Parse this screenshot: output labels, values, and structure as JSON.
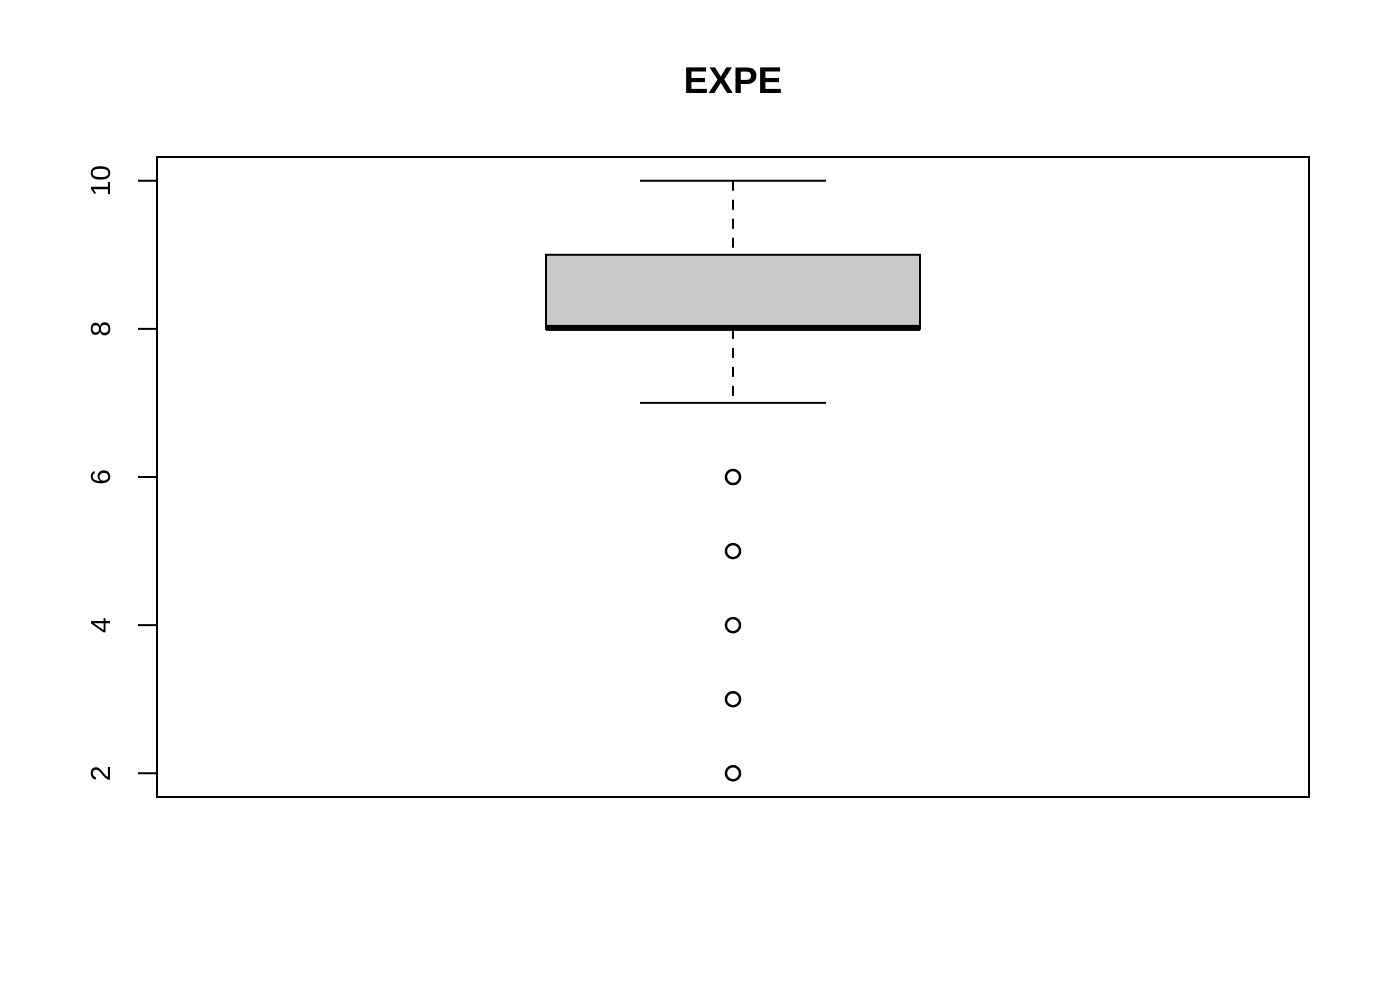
{
  "chart_data": {
    "type": "boxplot",
    "title": "EXPE",
    "xlabel": "",
    "ylabel": "",
    "ylim": [
      1.68,
      10.32
    ],
    "yticks": [
      2,
      4,
      6,
      8,
      10
    ],
    "ytick_labels": [
      "2",
      "4",
      "6",
      "8",
      "10"
    ],
    "grid": false,
    "legend": "none",
    "box": {
      "whisker_low": 7,
      "q1": 8,
      "median": 8,
      "q3": 9,
      "whisker_high": 10,
      "outliers": [
        6,
        5,
        4,
        3,
        2
      ]
    },
    "colors": {
      "box_fill": "#c8c8c8",
      "stroke": "#000000",
      "background": "#ffffff"
    }
  }
}
